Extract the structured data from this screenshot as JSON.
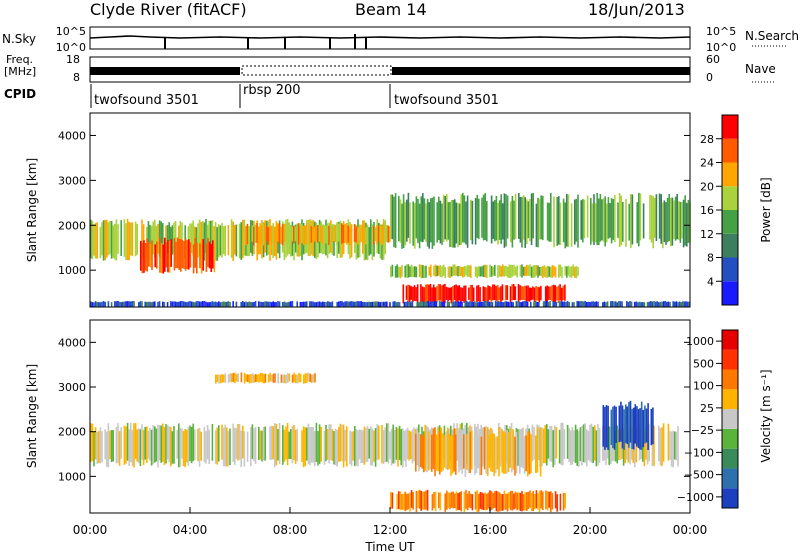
{
  "header": {
    "station": "Clyde River (fitACF)",
    "beam": "Beam 14",
    "date": "18/Jun/2013"
  },
  "noise_panel": {
    "left_label": "N.Sky",
    "left_ticks": [
      "10^5",
      "10^0"
    ],
    "right_label": "N.Search",
    "right_ticks": [
      "10^5",
      "10^0"
    ]
  },
  "freq_panel": {
    "left_label_line1": "Freq.",
    "left_label_line2": "[MHz]",
    "left_ticks": [
      "18",
      "8"
    ],
    "right_label": "Nave",
    "right_ticks": [
      "60",
      "0"
    ]
  },
  "cpid": {
    "label": "CPID",
    "segments": [
      {
        "name": "twofsound 3501",
        "start_hour": 0,
        "end_hour": 6
      },
      {
        "name": "rbsp 200",
        "start_hour": 6,
        "end_hour": 12
      },
      {
        "name": "twofsound 3501",
        "start_hour": 12,
        "end_hour": 24
      }
    ]
  },
  "chart_data": [
    {
      "type": "heatmap",
      "name": "power",
      "ylabel": "Slant Range [km]",
      "yticks": [
        "1000",
        "2000",
        "3000",
        "4000"
      ],
      "ylim": [
        180,
        4500
      ],
      "xlim": [
        0,
        24
      ],
      "colorbar_label": "Power [dB]",
      "colorbar_ticks": [
        "4",
        "8",
        "12",
        "16",
        "20",
        "24",
        "28"
      ],
      "colors": [
        "#1a1aff",
        "#244fc2",
        "#3e7e60",
        "#46a046",
        "#aad23c",
        "#ffa500",
        "#ff5a00",
        "#ff0000"
      ],
      "bands": [
        {
          "x0": 0.0,
          "x1": 11.8,
          "y0": 1300,
          "y1": 2050,
          "level": 4
        },
        {
          "x0": 2.0,
          "x1": 5.0,
          "y0": 1000,
          "y1": 1650,
          "level": 6
        },
        {
          "x0": 6.2,
          "x1": 12.0,
          "y0": 1600,
          "y1": 2000,
          "level": 5
        },
        {
          "x0": 12.0,
          "x1": 24.0,
          "y0": 1600,
          "y1": 2600,
          "level": 3
        },
        {
          "x0": 12.0,
          "x1": 19.5,
          "y0": 850,
          "y1": 1100,
          "level": 4
        },
        {
          "x0": 12.5,
          "x1": 19.0,
          "y0": 300,
          "y1": 650,
          "level": 7
        },
        {
          "x0": 0.0,
          "x1": 24.0,
          "y0": 180,
          "y1": 300,
          "level": 1
        }
      ]
    },
    {
      "type": "heatmap",
      "name": "velocity",
      "xlabel": "Time UT",
      "ylabel": "Slant Range [km]",
      "yticks": [
        "1000",
        "2000",
        "3000",
        "4000"
      ],
      "ylim": [
        180,
        4500
      ],
      "xlim": [
        0,
        24
      ],
      "xticks": [
        "00:00",
        "04:00",
        "08:00",
        "12:00",
        "16:00",
        "20:00",
        "00:00"
      ],
      "colorbar_label": "Velocity [m s⁻¹]",
      "colorbar_ticks": [
        "1000",
        "500",
        "100",
        "25",
        "−25",
        "−100",
        "−500",
        "−1000"
      ],
      "colors": [
        "#1c3fbf",
        "#2e6fae",
        "#3b8a5a",
        "#5ab43c",
        "#c8c8c8",
        "#ffb400",
        "#ff7800",
        "#ff3200",
        "#e60000"
      ],
      "bands": [
        {
          "x0": 0.0,
          "x1": 23.5,
          "y0": 1300,
          "y1": 2100,
          "level": 4
        },
        {
          "x0": 12.0,
          "x1": 19.0,
          "y0": 250,
          "y1": 650,
          "level": 6
        },
        {
          "x0": 13.0,
          "x1": 18.0,
          "y0": 1100,
          "y1": 2000,
          "level": 5
        },
        {
          "x0": 20.5,
          "x1": 22.5,
          "y0": 1700,
          "y1": 2600,
          "level": 0
        },
        {
          "x0": 5.0,
          "x1": 9.0,
          "y0": 3100,
          "y1": 3300,
          "level": 5
        }
      ]
    }
  ]
}
